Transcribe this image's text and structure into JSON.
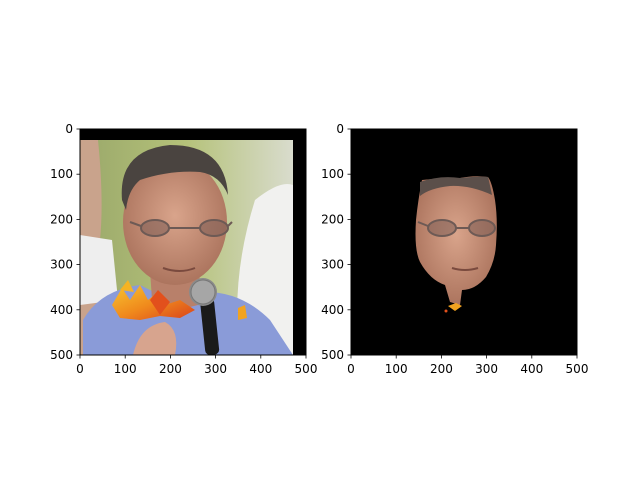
{
  "figure": {
    "background": "#ffffff"
  },
  "chart_data": [
    {
      "type": "image",
      "xlim": [
        0,
        500
      ],
      "ylim": [
        500,
        0
      ],
      "xticks": [
        0,
        100,
        200,
        300,
        400,
        500
      ],
      "yticks": [
        0,
        100,
        200,
        300,
        400,
        500
      ],
      "xtick_labels": [
        "0",
        "100",
        "200",
        "300",
        "400",
        "500"
      ],
      "ytick_labels": [
        "0",
        "100",
        "200",
        "300",
        "400",
        "500"
      ],
      "content": "original-photo"
    },
    {
      "type": "image",
      "xlim": [
        0,
        500
      ],
      "ylim": [
        500,
        0
      ],
      "xticks": [
        0,
        100,
        200,
        300,
        400,
        500
      ],
      "yticks": [
        0,
        100,
        200,
        300,
        400,
        500
      ],
      "xtick_labels": [
        "0",
        "100",
        "200",
        "300",
        "400",
        "500"
      ],
      "ytick_labels": [
        "0",
        "100",
        "200",
        "300",
        "400",
        "500"
      ],
      "content": "face-segmentation-mask"
    }
  ]
}
